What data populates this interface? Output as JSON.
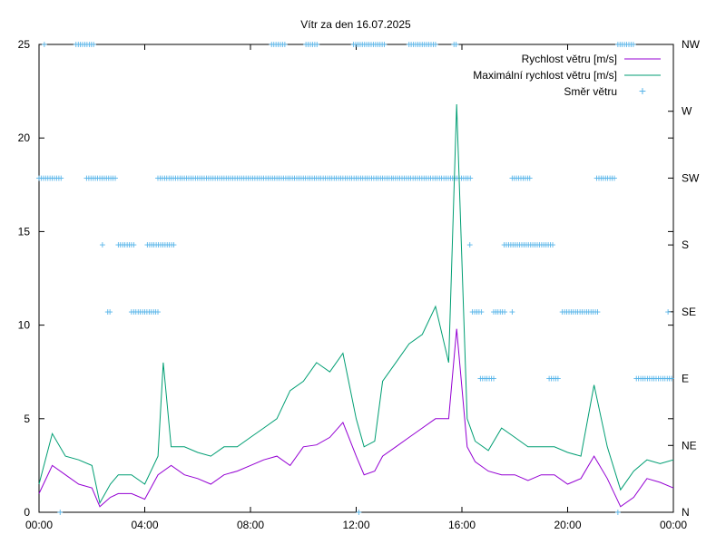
{
  "chart_data": {
    "type": "line",
    "title": "Vítr za den 16.07.2025",
    "x_ticks": [
      "00:00",
      "04:00",
      "08:00",
      "12:00",
      "16:00",
      "20:00",
      "00:00"
    ],
    "x_range_hours": [
      0,
      24
    ],
    "y_range": [
      0,
      25
    ],
    "y_ticks": [
      0,
      5,
      10,
      15,
      20,
      25
    ],
    "y2_ticks": [
      "N",
      "NE",
      "E",
      "SE",
      "S",
      "SW",
      "W",
      "NW"
    ],
    "legend_position": "top-right",
    "grid": false,
    "series": [
      {
        "name": "Rychlost větru [m/s]",
        "color": "#9400d3",
        "hours": [
          0,
          0.5,
          1,
          1.5,
          2,
          2.3,
          2.7,
          3,
          3.5,
          4,
          4.5,
          5,
          5.5,
          6,
          6.5,
          7,
          7.5,
          8,
          8.5,
          9,
          9.5,
          10,
          10.5,
          11,
          11.5,
          12,
          12.3,
          12.7,
          13,
          13.5,
          14,
          14.5,
          15,
          15.5,
          15.8,
          16.2,
          16.5,
          17,
          17.5,
          18,
          18.5,
          19,
          19.5,
          20,
          20.5,
          21,
          21.5,
          22,
          22.5,
          23,
          23.5,
          24
        ],
        "values": [
          1.0,
          2.5,
          2.0,
          1.5,
          1.3,
          0.3,
          0.8,
          1.0,
          1.0,
          0.7,
          2.0,
          2.5,
          2.0,
          1.8,
          1.5,
          2.0,
          2.2,
          2.5,
          2.8,
          3.0,
          2.5,
          3.5,
          3.6,
          4.0,
          4.8,
          3.0,
          2.0,
          2.2,
          3.0,
          3.5,
          4.0,
          4.5,
          5.0,
          5.0,
          9.8,
          3.5,
          2.7,
          2.2,
          2.0,
          2.0,
          1.7,
          2.0,
          2.0,
          1.5,
          1.8,
          3.0,
          1.8,
          0.3,
          0.8,
          1.8,
          1.6,
          1.3
        ]
      },
      {
        "name": "Maximální rychlost větru [m/s]",
        "color": "#009e73",
        "hours": [
          0,
          0.5,
          1,
          1.5,
          2,
          2.3,
          2.7,
          3,
          3.5,
          4,
          4.5,
          4.7,
          5,
          5.5,
          6,
          6.5,
          7,
          7.5,
          8,
          8.5,
          9,
          9.5,
          10,
          10.5,
          11,
          11.5,
          12,
          12.3,
          12.7,
          13,
          13.5,
          14,
          14.5,
          15,
          15.5,
          15.8,
          16.2,
          16.5,
          17,
          17.5,
          18,
          18.5,
          19,
          19.5,
          20,
          20.5,
          21,
          21.5,
          22,
          22.5,
          23,
          23.5,
          24
        ],
        "values": [
          1.5,
          4.2,
          3.0,
          2.8,
          2.5,
          0.5,
          1.5,
          2.0,
          2.0,
          1.5,
          3.0,
          8.0,
          3.5,
          3.5,
          3.2,
          3.0,
          3.5,
          3.5,
          4.0,
          4.5,
          5.0,
          6.5,
          7.0,
          8.0,
          7.5,
          8.5,
          5.0,
          3.5,
          3.8,
          7.0,
          8.0,
          9.0,
          9.5,
          11.0,
          8.0,
          21.8,
          5.0,
          3.8,
          3.3,
          4.5,
          4.0,
          3.5,
          3.5,
          3.5,
          3.2,
          3.0,
          6.8,
          3.5,
          1.2,
          2.2,
          2.8,
          2.6,
          2.8
        ]
      },
      {
        "name": "Směr větru",
        "color": "#56b4e9",
        "note_axis": "right",
        "dir_index_scale": [
          0,
          7
        ],
        "segments": [
          {
            "dir": "SW",
            "from": 0.0,
            "to": 0.8
          },
          {
            "dir": "NW",
            "from": 0.2,
            "to": 0.2
          },
          {
            "dir": "N",
            "from": 0.8,
            "to": 0.8
          },
          {
            "dir": "NW",
            "from": 1.4,
            "to": 2.1
          },
          {
            "dir": "SW",
            "from": 1.8,
            "to": 2.9
          },
          {
            "dir": "S",
            "from": 2.4,
            "to": 2.4
          },
          {
            "dir": "SE",
            "from": 2.6,
            "to": 2.7
          },
          {
            "dir": "S",
            "from": 3.0,
            "to": 3.6
          },
          {
            "dir": "SE",
            "from": 3.5,
            "to": 4.5
          },
          {
            "dir": "S",
            "from": 4.1,
            "to": 5.1
          },
          {
            "dir": "SW",
            "from": 4.5,
            "to": 13.3
          },
          {
            "dir": "NW",
            "from": 8.8,
            "to": 9.3
          },
          {
            "dir": "NW",
            "from": 10.1,
            "to": 10.5
          },
          {
            "dir": "NW",
            "from": 11.9,
            "to": 13.1
          },
          {
            "dir": "N",
            "from": 12.1,
            "to": 12.1
          },
          {
            "dir": "SW",
            "from": 13.4,
            "to": 16.3
          },
          {
            "dir": "NW",
            "from": 14.0,
            "to": 15.0
          },
          {
            "dir": "NW",
            "from": 15.7,
            "to": 15.8
          },
          {
            "dir": "S",
            "from": 16.3,
            "to": 16.3
          },
          {
            "dir": "SE",
            "from": 16.4,
            "to": 16.7
          },
          {
            "dir": "E",
            "from": 16.7,
            "to": 17.2
          },
          {
            "dir": "SE",
            "from": 17.2,
            "to": 17.6
          },
          {
            "dir": "S",
            "from": 17.6,
            "to": 19.4
          },
          {
            "dir": "SE",
            "from": 17.9,
            "to": 17.9
          },
          {
            "dir": "SW",
            "from": 17.9,
            "to": 18.6
          },
          {
            "dir": "E",
            "from": 19.3,
            "to": 19.6
          },
          {
            "dir": "SE",
            "from": 19.8,
            "to": 21.1
          },
          {
            "dir": "SW",
            "from": 21.1,
            "to": 21.8
          },
          {
            "dir": "NW",
            "from": 21.9,
            "to": 22.5
          },
          {
            "dir": "N",
            "from": 21.9,
            "to": 21.9
          },
          {
            "dir": "E",
            "from": 22.6,
            "to": 24.0
          },
          {
            "dir": "SE",
            "from": 23.8,
            "to": 23.8
          }
        ]
      }
    ]
  }
}
